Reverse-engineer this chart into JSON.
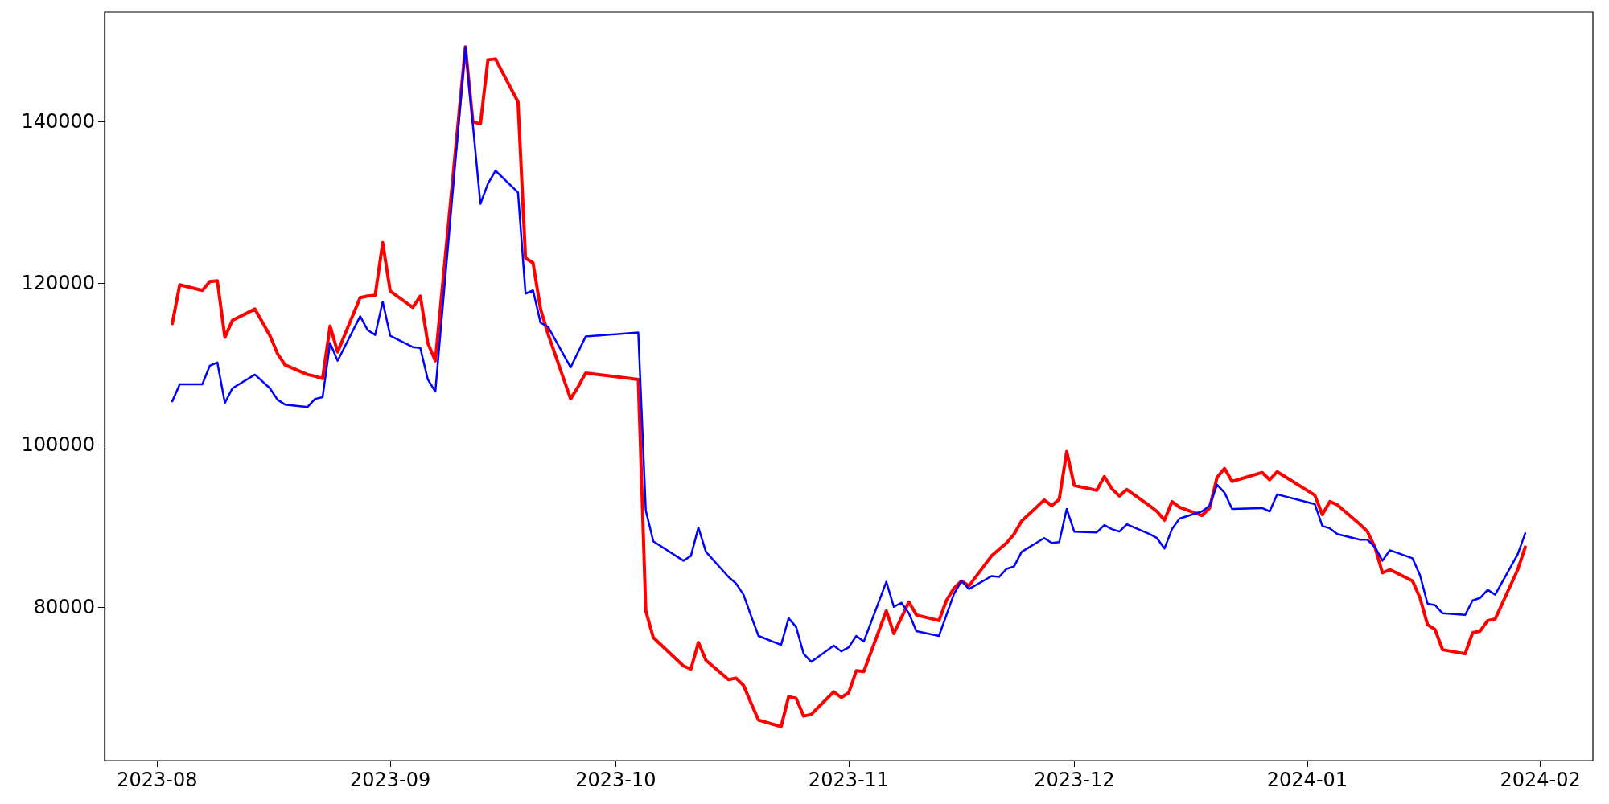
{
  "chart_data": {
    "type": "line",
    "xlim": [
      "2023-07-25",
      "2024-02-08"
    ],
    "ylim": [
      61000,
      153500
    ],
    "xticks": [
      {
        "value": "2023-08-01",
        "label": "2023-08"
      },
      {
        "value": "2023-09-01",
        "label": "2023-09"
      },
      {
        "value": "2023-10-01",
        "label": "2023-10"
      },
      {
        "value": "2023-11-01",
        "label": "2023-11"
      },
      {
        "value": "2023-12-01",
        "label": "2023-12"
      },
      {
        "value": "2024-01-01",
        "label": "2024-01"
      },
      {
        "value": "2024-02-01",
        "label": "2024-02"
      }
    ],
    "yticks": [
      80000,
      100000,
      120000,
      140000
    ],
    "marker": "none",
    "line_style": "solid",
    "series": [
      {
        "color": "#ff0000",
        "x": [
          "2023-08-03",
          "2023-08-04",
          "2023-08-07",
          "2023-08-08",
          "2023-08-09",
          "2023-08-10",
          "2023-08-11",
          "2023-08-14",
          "2023-08-16",
          "2023-08-17",
          "2023-08-18",
          "2023-08-21",
          "2023-08-22",
          "2023-08-23",
          "2023-08-24",
          "2023-08-25",
          "2023-08-28",
          "2023-08-29",
          "2023-08-30",
          "2023-08-31",
          "2023-09-01",
          "2023-09-04",
          "2023-09-05",
          "2023-09-06",
          "2023-09-07",
          "2023-09-11",
          "2023-09-12",
          "2023-09-13",
          "2023-09-14",
          "2023-09-15",
          "2023-09-18",
          "2023-09-19",
          "2023-09-20",
          "2023-09-21",
          "2023-09-22",
          "2023-09-25",
          "2023-09-26",
          "2023-09-27",
          "2023-10-04",
          "2023-10-05",
          "2023-10-06",
          "2023-10-10",
          "2023-10-11",
          "2023-10-12",
          "2023-10-13",
          "2023-10-16",
          "2023-10-17",
          "2023-10-18",
          "2023-10-19",
          "2023-10-20",
          "2023-10-23",
          "2023-10-24",
          "2023-10-25",
          "2023-10-26",
          "2023-10-27",
          "2023-10-30",
          "2023-10-31",
          "2023-11-01",
          "2023-11-02",
          "2023-11-03",
          "2023-11-06",
          "2023-11-07",
          "2023-11-09",
          "2023-11-10",
          "2023-11-13",
          "2023-11-14",
          "2023-11-15",
          "2023-11-16",
          "2023-11-17",
          "2023-11-20",
          "2023-11-22",
          "2023-11-23",
          "2023-11-24",
          "2023-11-27",
          "2023-11-28",
          "2023-11-29",
          "2023-11-30",
          "2023-12-01",
          "2023-12-04",
          "2023-12-05",
          "2023-12-06",
          "2023-12-07",
          "2023-12-08",
          "2023-12-11",
          "2023-12-12",
          "2023-12-13",
          "2023-12-14",
          "2023-12-15",
          "2023-12-18",
          "2023-12-19",
          "2023-12-20",
          "2023-12-21",
          "2023-12-22",
          "2023-12-26",
          "2023-12-27",
          "2023-12-28",
          "2024-01-02",
          "2024-01-03",
          "2024-01-04",
          "2024-01-05",
          "2024-01-08",
          "2024-01-09",
          "2024-01-10",
          "2024-01-11",
          "2024-01-12",
          "2024-01-15",
          "2024-01-16",
          "2024-01-17",
          "2024-01-18",
          "2024-01-19",
          "2024-01-22",
          "2024-01-23",
          "2024-01-24",
          "2024-01-25",
          "2024-01-26",
          "2024-01-29",
          "2024-01-30"
        ],
        "values": [
          115000,
          119800,
          119100,
          120200,
          120300,
          113300,
          115400,
          116800,
          113500,
          111300,
          109900,
          108700,
          108500,
          108200,
          114700,
          111500,
          118200,
          118400,
          118500,
          125000,
          119000,
          117000,
          118400,
          112600,
          110400,
          149200,
          139900,
          139700,
          147600,
          147700,
          142400,
          123100,
          122500,
          116800,
          113700,
          105700,
          107200,
          108900,
          108100,
          79500,
          76200,
          72700,
          72300,
          75600,
          73400,
          71000,
          71200,
          70300,
          68100,
          66000,
          65200,
          68900,
          68700,
          66500,
          66700,
          69500,
          68800,
          69400,
          72100,
          72000,
          79500,
          76700,
          80600,
          79000,
          78300,
          80800,
          82300,
          83200,
          82600,
          86300,
          87900,
          89000,
          90600,
          93200,
          92500,
          93300,
          99200,
          95000,
          94400,
          96100,
          94600,
          93700,
          94500,
          92500,
          91800,
          90700,
          93000,
          92300,
          91300,
          92200,
          96000,
          97100,
          95500,
          96600,
          95700,
          96700,
          93800,
          91400,
          93000,
          92600,
          90200,
          89300,
          87400,
          84200,
          84600,
          83200,
          81100,
          77800,
          77200,
          74700,
          74200,
          76800,
          77000,
          78300,
          78500,
          84600,
          87400
        ]
      },
      {
        "color": "#0000ff",
        "x": [
          "2023-08-03",
          "2023-08-04",
          "2023-08-07",
          "2023-08-08",
          "2023-08-09",
          "2023-08-10",
          "2023-08-11",
          "2023-08-14",
          "2023-08-16",
          "2023-08-17",
          "2023-08-18",
          "2023-08-21",
          "2023-08-22",
          "2023-08-23",
          "2023-08-24",
          "2023-08-25",
          "2023-08-28",
          "2023-08-29",
          "2023-08-30",
          "2023-08-31",
          "2023-09-01",
          "2023-09-04",
          "2023-09-05",
          "2023-09-06",
          "2023-09-07",
          "2023-09-11",
          "2023-09-13",
          "2023-09-14",
          "2023-09-15",
          "2023-09-18",
          "2023-09-19",
          "2023-09-20",
          "2023-09-21",
          "2023-09-22",
          "2023-09-25",
          "2023-09-26",
          "2023-09-27",
          "2023-10-04",
          "2023-10-05",
          "2023-10-06",
          "2023-10-10",
          "2023-10-11",
          "2023-10-12",
          "2023-10-13",
          "2023-10-16",
          "2023-10-17",
          "2023-10-18",
          "2023-10-19",
          "2023-10-20",
          "2023-10-23",
          "2023-10-24",
          "2023-10-25",
          "2023-10-26",
          "2023-10-27",
          "2023-10-30",
          "2023-10-31",
          "2023-11-01",
          "2023-11-02",
          "2023-11-03",
          "2023-11-06",
          "2023-11-07",
          "2023-11-08",
          "2023-11-09",
          "2023-11-10",
          "2023-11-13",
          "2023-11-15",
          "2023-11-16",
          "2023-11-17",
          "2023-11-20",
          "2023-11-21",
          "2023-11-22",
          "2023-11-23",
          "2023-11-24",
          "2023-11-27",
          "2023-11-28",
          "2023-11-29",
          "2023-11-30",
          "2023-12-01",
          "2023-12-04",
          "2023-12-05",
          "2023-12-06",
          "2023-12-07",
          "2023-12-08",
          "2023-12-11",
          "2023-12-12",
          "2023-12-13",
          "2023-12-14",
          "2023-12-15",
          "2023-12-18",
          "2023-12-19",
          "2023-12-20",
          "2023-12-21",
          "2023-12-22",
          "2023-12-26",
          "2023-12-27",
          "2023-12-28",
          "2024-01-02",
          "2024-01-03",
          "2024-01-04",
          "2024-01-05",
          "2024-01-08",
          "2024-01-09",
          "2024-01-10",
          "2024-01-11",
          "2024-01-12",
          "2024-01-15",
          "2024-01-16",
          "2024-01-17",
          "2024-01-18",
          "2024-01-19",
          "2024-01-22",
          "2024-01-23",
          "2024-01-24",
          "2024-01-25",
          "2024-01-26",
          "2024-01-29",
          "2024-01-30"
        ],
        "values": [
          105400,
          107500,
          107500,
          109800,
          110200,
          105200,
          107000,
          108700,
          107000,
          105600,
          105000,
          104700,
          105700,
          105900,
          112600,
          110400,
          115900,
          114200,
          113600,
          117700,
          113500,
          112100,
          112000,
          108100,
          106600,
          149200,
          129800,
          132300,
          133900,
          131200,
          118700,
          119100,
          115100,
          114600,
          109600,
          111500,
          113400,
          113900,
          91900,
          88100,
          85700,
          86300,
          89800,
          86800,
          83700,
          82900,
          81500,
          78900,
          76400,
          75300,
          78600,
          77500,
          74200,
          73200,
          75200,
          74500,
          75000,
          76400,
          75700,
          83100,
          80000,
          80500,
          79200,
          77000,
          76400,
          81600,
          83200,
          82200,
          83800,
          83700,
          84700,
          85000,
          86800,
          88500,
          87900,
          88000,
          92100,
          89300,
          89200,
          90100,
          89600,
          89300,
          90200,
          89000,
          88500,
          87200,
          89600,
          90900,
          91800,
          92500,
          95100,
          94100,
          92100,
          92200,
          91800,
          93900,
          92700,
          90000,
          89700,
          89000,
          88300,
          88300,
          87400,
          85700,
          87000,
          86000,
          83900,
          80400,
          80200,
          79200,
          79000,
          80800,
          81100,
          82100,
          81500,
          86500,
          89100
        ]
      }
    ]
  }
}
